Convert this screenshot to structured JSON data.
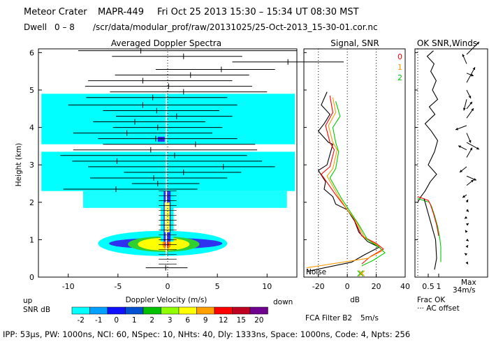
{
  "header": {
    "site": "Meteor Crater",
    "instrument": "MAPR-449",
    "date_range": "Fri Oct 25 2013 15:30 – 15:34 UT 08:30 MST",
    "dwell_label": "Dwell",
    "dwell_range": "0 – 8",
    "file_path": "/scr/data/modular_prof/raw/20131025/25-Oct-2013_15-30-01.cor.nc"
  },
  "footer": {
    "params": "IPP: 53µs,  PW: 1000ns,  NCI: 60,  NSpec: 10,  NHts: 40,  Dly: 1333ns,  Space: 1000ns,  Code: 4,  Npts: 256"
  },
  "colors": {
    "cyan": "#00ffff",
    "blue": "#3030f0",
    "green": "#30d030",
    "yellow": "#ffff00",
    "orange": "#ff8c00",
    "red": "#ff0000",
    "purple": "#7a2a9a"
  },
  "chart_data": [
    {
      "type": "heatmap",
      "title": "Averaged Doppler Spectra",
      "xlabel": "Doppler Velocity (m/s)",
      "ylabel": "Height (km)",
      "xlim": [
        -13,
        13
      ],
      "ylim": [
        0,
        6.1
      ],
      "xticks": [
        -10,
        -5,
        0,
        5,
        10
      ],
      "yticks": [
        0,
        1,
        2,
        3,
        4,
        5,
        6
      ],
      "up_label": "up",
      "down_label": "down",
      "colorbar": {
        "label": "SNR dB",
        "ticks": [
          "-2",
          "-1",
          "0",
          "1",
          "2",
          "3",
          "6",
          "9",
          "12",
          "15",
          "20"
        ],
        "colors": [
          "#00ffff",
          "#00a0ff",
          "#1010ff",
          "#0050d0",
          "#00c000",
          "#90ff00",
          "#ffff00",
          "#ffa000",
          "#ff0000",
          "#c00020",
          "#700090"
        ]
      },
      "moment_lines": [
        {
          "h": 6.05,
          "left": -9,
          "right": 13,
          "mean": -2.7
        },
        {
          "h": 5.9,
          "left": -5.6,
          "right": 7.5,
          "mean": 1.6
        },
        {
          "h": 5.75,
          "left": 6.5,
          "right": 17.8,
          "mean": 12.1
        },
        {
          "h": 5.55,
          "left": -1.2,
          "right": 10.8,
          "mean": 5.4
        },
        {
          "h": 5.4,
          "left": -5.3,
          "right": 8.2,
          "mean": 2.3
        },
        {
          "h": 5.25,
          "left": -8,
          "right": 6.5,
          "mean": -2.5
        },
        {
          "h": 5.1,
          "left": -8.3,
          "right": 8.5,
          "mean": 0.1
        },
        {
          "h": 4.95,
          "left": -5.8,
          "right": 10,
          "mean": 1.6
        },
        {
          "h": 4.8,
          "left": -8.2,
          "right": 6,
          "mean": -1.5
        },
        {
          "h": 4.6,
          "left": -10,
          "right": 7,
          "mean": -2.5
        },
        {
          "h": 4.45,
          "left": -6.5,
          "right": 5.2,
          "mean": -1.1
        },
        {
          "h": 4.3,
          "left": -5.2,
          "right": 6.5,
          "mean": 0.9
        },
        {
          "h": 4.15,
          "left": -7.5,
          "right": 3.8,
          "mean": -3.3
        },
        {
          "h": 4.0,
          "left": -5.5,
          "right": 5.5,
          "mean": -1.0
        },
        {
          "h": 3.85,
          "left": -9.5,
          "right": 4.5,
          "mean": -4.1
        },
        {
          "h": 3.7,
          "left": -7,
          "right": 7,
          "mean": -1.2
        },
        {
          "h": 3.55,
          "left": -6.5,
          "right": 8.8,
          "mean": 2.8
        },
        {
          "h": 3.4,
          "left": -9.5,
          "right": 9,
          "mean": -1.7
        },
        {
          "h": 3.25,
          "left": -10.8,
          "right": 8,
          "mean": 0.7
        },
        {
          "h": 3.1,
          "left": -9.6,
          "right": 9.5,
          "mean": -5.1
        },
        {
          "h": 2.95,
          "left": -8,
          "right": 10.8,
          "mean": 5.6
        },
        {
          "h": 2.8,
          "left": -4.4,
          "right": 7.4,
          "mean": 1.6
        },
        {
          "h": 2.65,
          "left": -7.8,
          "right": 6,
          "mean": -1.4
        },
        {
          "h": 2.5,
          "left": -3.6,
          "right": 3.2,
          "mean": -1.0
        },
        {
          "h": 2.35,
          "left": -10.5,
          "right": 3,
          "mean": -5.2
        },
        {
          "h": 0.25,
          "left": -2.2,
          "right": 2,
          "mean": -0.2
        }
      ]
    },
    {
      "type": "line",
      "title": "Signal, SNR",
      "xlabel": "dB",
      "xlim": [
        -30,
        40
      ],
      "xticks": [
        -20,
        0,
        20,
        40
      ],
      "ylim": [
        0,
        6.1
      ],
      "noise_label": "Noise",
      "series": [
        {
          "name": "signal",
          "color": "#000000",
          "points": [
            [
              -14,
              4.95
            ],
            [
              -18,
              4.6
            ],
            [
              -12,
              4.35
            ],
            [
              -16,
              4.1
            ],
            [
              -20,
              3.9
            ],
            [
              -13,
              3.6
            ],
            [
              -10,
              3.55
            ],
            [
              -14,
              3.0
            ],
            [
              -20,
              2.85
            ],
            [
              -15,
              2.55
            ],
            [
              -16,
              2.35
            ],
            [
              -10,
              2.15
            ],
            [
              -8,
              1.95
            ],
            [
              0,
              1.8
            ],
            [
              5,
              1.5
            ],
            [
              8,
              1.2
            ],
            [
              14,
              0.95
            ],
            [
              22,
              0.8
            ],
            [
              12,
              0.6
            ],
            [
              3,
              0.4
            ],
            [
              -28,
              0.15
            ]
          ]
        },
        {
          "name": "SNR",
          "color": "#ff0000",
          "points": [
            [
              -12,
              4.85
            ],
            [
              -10,
              4.4
            ],
            [
              -15,
              4.05
            ],
            [
              -12,
              3.6
            ],
            [
              -9,
              3.4
            ],
            [
              -12,
              2.95
            ],
            [
              -18,
              2.75
            ],
            [
              -8,
              2.2
            ],
            [
              -2,
              1.9
            ],
            [
              4,
              1.6
            ],
            [
              10,
              1.1
            ],
            [
              20,
              0.9
            ],
            [
              25,
              0.75
            ],
            [
              16,
              0.55
            ],
            [
              10,
              0.35
            ]
          ]
        },
        {
          "name": "orange",
          "color": "#ff9900",
          "points": [
            [
              -10,
              4.8
            ],
            [
              -8,
              4.4
            ],
            [
              -13,
              4.05
            ],
            [
              -10,
              3.6
            ],
            [
              -7,
              3.4
            ],
            [
              -10,
              2.9
            ],
            [
              -14,
              2.7
            ],
            [
              -6,
              2.15
            ],
            [
              0,
              1.8
            ],
            [
              6,
              1.5
            ],
            [
              12,
              1.05
            ],
            [
              21,
              0.85
            ],
            [
              24,
              0.7
            ],
            [
              14,
              0.5
            ],
            [
              -28,
              0.25
            ]
          ]
        },
        {
          "name": "green",
          "color": "#00cc00",
          "points": [
            [
              -8,
              4.7
            ],
            [
              -5,
              4.3
            ],
            [
              -10,
              4.0
            ],
            [
              -8,
              3.6
            ],
            [
              -6,
              3.35
            ],
            [
              -8,
              2.9
            ],
            [
              -12,
              2.65
            ],
            [
              -4,
              2.1
            ],
            [
              2,
              1.75
            ],
            [
              8,
              1.4
            ],
            [
              14,
              1.0
            ],
            [
              22,
              0.8
            ],
            [
              26,
              0.65
            ],
            [
              18,
              0.45
            ],
            [
              10,
              0.3
            ]
          ]
        }
      ],
      "x_marks": [
        {
          "x": 9,
          "h": 0.1,
          "color": "#00cc00"
        },
        {
          "x": 10,
          "h": 0.1,
          "color": "#ff9900"
        }
      ]
    },
    {
      "type": "line",
      "title": "OK SNR,Winds",
      "legend": [
        "0",
        "1",
        "2"
      ],
      "legend_colors": [
        "#ff0000",
        "#ff9900",
        "#00cc00"
      ],
      "xlabel": "Frac OK",
      "xticks": [
        "0.5",
        "1"
      ],
      "note": "··· AC offset",
      "ylim": [
        0,
        6.1
      ],
      "series": [
        {
          "name": "frac_ok",
          "color": "#000000",
          "points": [
            [
              0.75,
              6.05
            ],
            [
              0.45,
              5.9
            ],
            [
              0.78,
              5.7
            ],
            [
              0.62,
              5.5
            ],
            [
              0.88,
              5.25
            ],
            [
              0.7,
              5.0
            ],
            [
              0.95,
              4.75
            ],
            [
              0.55,
              4.55
            ],
            [
              0.82,
              4.35
            ],
            [
              0.35,
              4.1
            ],
            [
              0.65,
              3.9
            ],
            [
              0.95,
              3.65
            ],
            [
              0.8,
              3.35
            ],
            [
              0.5,
              3.0
            ],
            [
              0.9,
              2.75
            ],
            [
              0.6,
              2.55
            ],
            [
              0.35,
              2.3
            ],
            [
              0.15,
              2.15
            ],
            [
              0.0,
              2.0
            ]
          ]
        },
        {
          "name": "frac_ok_green",
          "color": "#00cc00",
          "points": [
            [
              0.0,
              2.1
            ],
            [
              0.55,
              2.0
            ],
            [
              0.65,
              1.9
            ],
            [
              0.8,
              1.65
            ],
            [
              0.95,
              1.35
            ],
            [
              1.05,
              1.05
            ],
            [
              1.1,
              0.8
            ],
            [
              1.1,
              0.4
            ]
          ]
        },
        {
          "name": "frac_ok_red",
          "color": "#ff0000",
          "points": [
            [
              0.0,
              2.15
            ],
            [
              0.5,
              2.05
            ],
            [
              0.6,
              1.95
            ],
            [
              0.75,
              1.7
            ],
            [
              0.9,
              1.4
            ],
            [
              1.0,
              1.1
            ]
          ]
        },
        {
          "name": "frac_ok_black_low",
          "color": "#000000",
          "points": [
            [
              0.3,
              2.1
            ],
            [
              0.5,
              1.7
            ],
            [
              0.7,
              1.3
            ],
            [
              0.85,
              1.0
            ],
            [
              0.9,
              0.5
            ],
            [
              0.8,
              0.2
            ]
          ]
        }
      ],
      "winds_label": "Max",
      "winds_max": "34m/s",
      "winds": [
        {
          "h": 5.95,
          "dx": 18,
          "dy": -18
        },
        {
          "h": 5.7,
          "dx": -6,
          "dy": -14
        },
        {
          "h": 5.45,
          "dx": 10,
          "dy": 4
        },
        {
          "h": 5.2,
          "dx": 12,
          "dy": -22
        },
        {
          "h": 5.0,
          "dx": 6,
          "dy": 12
        },
        {
          "h": 4.75,
          "dx": -4,
          "dy": 16
        },
        {
          "h": 4.5,
          "dx": 8,
          "dy": -10
        },
        {
          "h": 4.25,
          "dx": 10,
          "dy": -14
        },
        {
          "h": 4.05,
          "dx": -16,
          "dy": 6
        },
        {
          "h": 3.85,
          "dx": 6,
          "dy": 14
        },
        {
          "h": 3.6,
          "dx": 18,
          "dy": 10
        },
        {
          "h": 3.4,
          "dx": -12,
          "dy": -6
        },
        {
          "h": 3.2,
          "dx": 8,
          "dy": -14
        },
        {
          "h": 2.95,
          "dx": -10,
          "dy": 8
        },
        {
          "h": 2.7,
          "dx": 14,
          "dy": 6
        },
        {
          "h": 2.45,
          "dx": 10,
          "dy": -8
        },
        {
          "h": 2.2,
          "dx": -6,
          "dy": 4
        },
        {
          "h": 2.0,
          "dx": 2,
          "dy": -4
        },
        {
          "h": 1.8,
          "dx": 3,
          "dy": 3
        },
        {
          "h": 1.6,
          "dx": -3,
          "dy": 2
        },
        {
          "h": 1.4,
          "dx": 3,
          "dy": -2
        },
        {
          "h": 1.2,
          "dx": -2,
          "dy": -3
        },
        {
          "h": 1.0,
          "dx": 3,
          "dy": 2
        },
        {
          "h": 0.8,
          "dx": 2,
          "dy": -3
        },
        {
          "h": 0.6,
          "dx": -3,
          "dy": -2
        },
        {
          "h": 0.4,
          "dx": 2,
          "dy": 3
        }
      ]
    }
  ],
  "fca": {
    "label": "FCA Filter B2",
    "speed": "5m/s"
  }
}
